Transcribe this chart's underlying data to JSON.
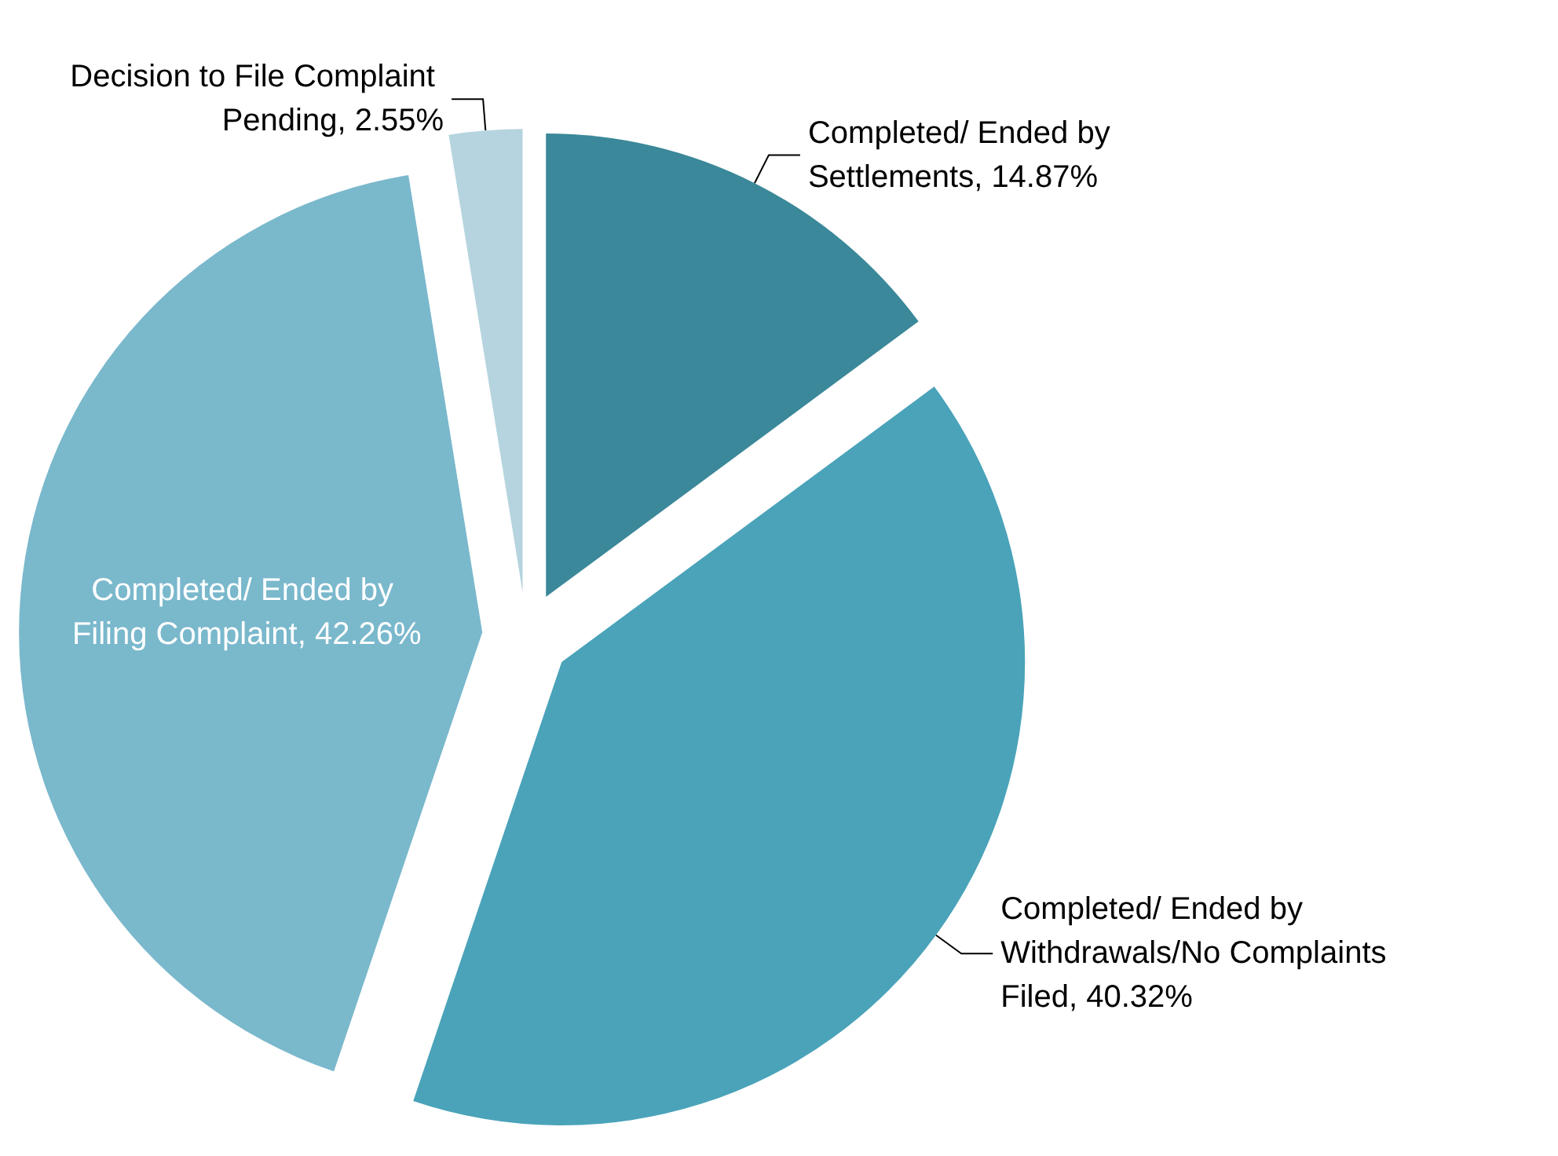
{
  "chart_data": {
    "type": "pie",
    "categories": [
      "Completed/ Ended by Settlements",
      "Completed/ Ended by Withdrawals/No Complaints Filed",
      "Completed/ Ended by Filing Complaint",
      "Decision to File Complaint Pending"
    ],
    "values": [
      14.87,
      40.32,
      42.26,
      2.55
    ],
    "value_labels": [
      "14.87%",
      "40.32%",
      "42.26%",
      "2.55%"
    ],
    "colors": [
      "#3a8899",
      "#4aa3b9",
      "#7ab8cc",
      "#b5d4df"
    ],
    "legend": false
  }
}
